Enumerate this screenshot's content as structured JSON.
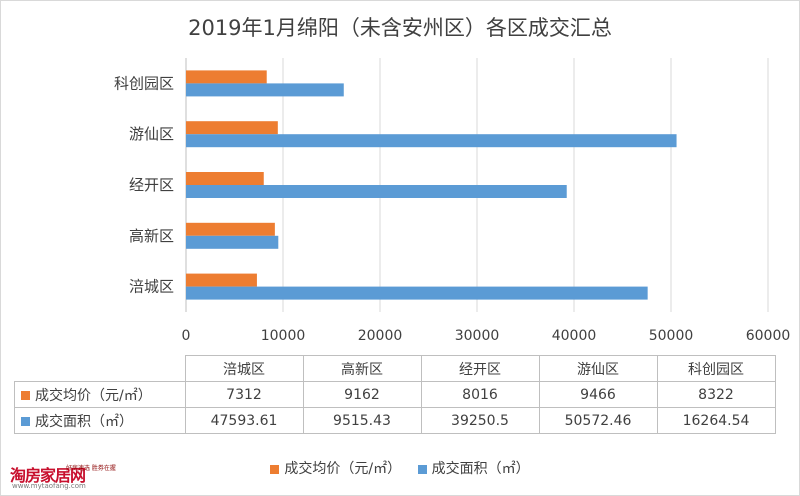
{
  "chart_data": {
    "type": "bar",
    "orientation": "horizontal",
    "title": "2019年1月绵阳（未含安州区）各区成交汇总",
    "categories": [
      "涪城区",
      "高新区",
      "经开区",
      "游仙区",
      "科创园区"
    ],
    "series": [
      {
        "name": "成交均价（元/㎡）",
        "color": "#ed7d31",
        "values": [
          7312,
          9162,
          8016,
          9466,
          8322
        ]
      },
      {
        "name": "成交面积（㎡）",
        "color": "#5b9bd5",
        "values": [
          47593.61,
          9515.43,
          39250.5,
          50572.46,
          16264.54
        ]
      }
    ],
    "xlim": [
      0,
      60000
    ],
    "xticks": [
      "0",
      "10000",
      "20000",
      "30000",
      "40000",
      "50000",
      "60000"
    ],
    "grid": true,
    "legend": "bottom",
    "data_table": {
      "headers": [
        "涪城区",
        "高新区",
        "经开区",
        "游仙区",
        "科创园区"
      ],
      "rows": [
        {
          "label": "成交均价（元/㎡）",
          "values": [
            "7312",
            "9162",
            "8016",
            "9466",
            "8322"
          ]
        },
        {
          "label": "成交面积（㎡）",
          "values": [
            "47593.61",
            "9515.43",
            "39250.5",
            "50572.46",
            "16264.54"
          ]
        }
      ]
    }
  },
  "watermark": {
    "brand": "淘房家居网",
    "tagline": "好房速选 胜券在握",
    "url": "www.mytaofang.com"
  }
}
